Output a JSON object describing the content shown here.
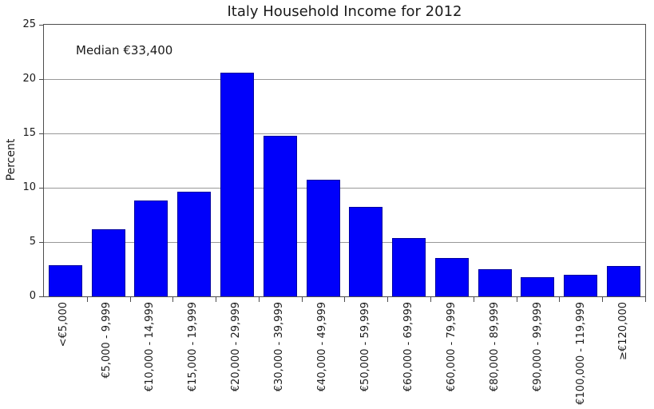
{
  "chart_data": {
    "type": "bar",
    "title": "Italy Household Income for 2012",
    "ylabel": "Percent",
    "xlabel": "",
    "annotation": "Median €33,400",
    "categories": [
      "<€5,000",
      "€5,000 - 9,999",
      "€10,000 - 14,999",
      "€15,000 - 19,999",
      "€20,000 - 29,999",
      "€30,000 - 39,999",
      "€40,000 - 49,999",
      "€50,000 - 59,999",
      "€60,000 - 69,999",
      "€60,000 - 79,999",
      "€80,000 - 89,999",
      "€90,000 - 99,999",
      "€100,000 - 119,999",
      "≥€120,000"
    ],
    "values": [
      2.9,
      6.2,
      8.8,
      9.6,
      20.6,
      14.8,
      10.7,
      8.2,
      5.4,
      3.5,
      2.5,
      1.8,
      2.0,
      2.8
    ],
    "ylim": [
      0,
      25
    ],
    "yticks": [
      0,
      5,
      10,
      15,
      20,
      25
    ],
    "grid": true,
    "legend": "none",
    "colors": {
      "bar_fill": "#0000fa",
      "bar_edge": "#0000a0",
      "gridline": "#999999",
      "spine": "#4d4d4d",
      "text": "#1a1a1a",
      "background": "#ffffff"
    }
  }
}
